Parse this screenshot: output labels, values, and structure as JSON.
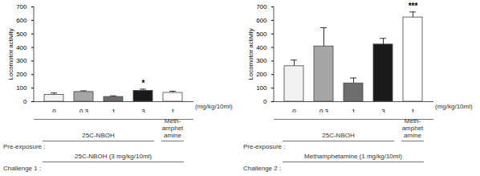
{
  "chart_data": [
    {
      "type": "bar",
      "y_label": "Locomotor activity",
      "categories": [
        "0",
        "0.3",
        "1",
        "3",
        "1"
      ],
      "unit_label": "(mg/kg/10ml)",
      "values": [
        50,
        72,
        35,
        80,
        65
      ],
      "errors": [
        14,
        8,
        8,
        12,
        12
      ],
      "colors": [
        "#f2f2f2",
        "#a6a6a6",
        "#6e6e6e",
        "#1a1a1a",
        "#ffffff"
      ],
      "ylim": [
        0,
        700
      ],
      "yticks": [
        0,
        100,
        200,
        300,
        400,
        500,
        600,
        700
      ],
      "annotations": [
        {
          "category_index": 3,
          "text": "*"
        }
      ],
      "pre_exposure": {
        "label": "Pre-exposure :",
        "groups": [
          {
            "text": "25C-NBOH",
            "from": 0,
            "to": 3
          },
          {
            "text": "Meth-amphetamine",
            "from": 4,
            "to": 4
          }
        ]
      },
      "challenge": {
        "label": "Challenge 1 :",
        "text": "25C-NBOH (3 mg/kg/10ml)"
      }
    },
    {
      "type": "bar",
      "y_label": "Locomotor activity",
      "categories": [
        "0",
        "0.3",
        "1",
        "3",
        "1"
      ],
      "unit_label": "(mg/kg/10ml)",
      "values": [
        262,
        408,
        135,
        422,
        622
      ],
      "errors": [
        45,
        138,
        40,
        45,
        40
      ],
      "colors": [
        "#f2f2f2",
        "#a6a6a6",
        "#6e6e6e",
        "#1a1a1a",
        "#ffffff"
      ],
      "ylim": [
        0,
        700
      ],
      "yticks": [
        0,
        100,
        200,
        300,
        400,
        500,
        600,
        700
      ],
      "annotations": [
        {
          "category_index": 4,
          "text": "***"
        }
      ],
      "pre_exposure": {
        "label": "Pre-exposure :",
        "groups": [
          {
            "text": "25C-NBOH",
            "from": 0,
            "to": 3
          },
          {
            "text": "Meth-amphetamine",
            "from": 4,
            "to": 4
          }
        ]
      },
      "challenge": {
        "label": "Challenge 2 :",
        "text": "Methamphetamine (1 mg/kg/10ml)"
      }
    }
  ]
}
